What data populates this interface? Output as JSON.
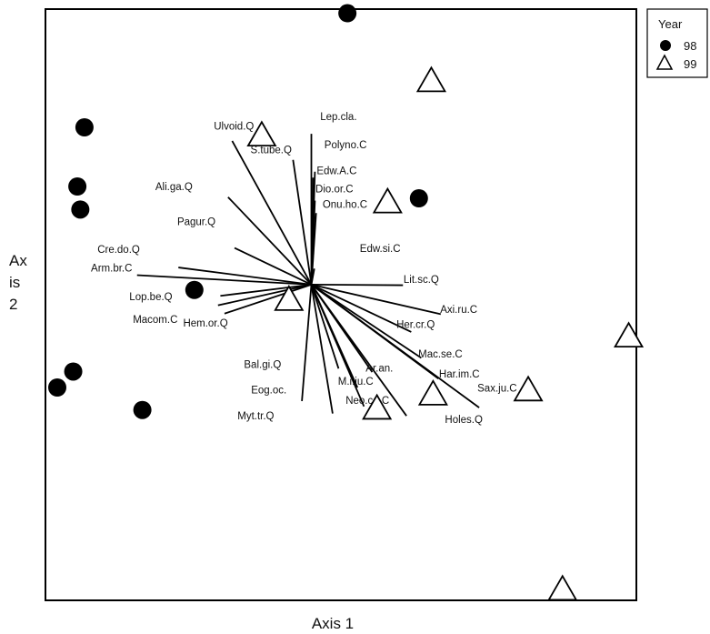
{
  "chart_data": {
    "type": "scatter",
    "xlabel": "Axis 1",
    "ylabel_lines": [
      "Ax",
      "is",
      "2"
    ],
    "grid": false,
    "legend": {
      "title": "Year",
      "placement": "top-right",
      "entries": [
        {
          "label": "98",
          "marker": "circle",
          "color": "#000000"
        },
        {
          "label": "99",
          "marker": "triangle",
          "color": "#ffffff"
        }
      ]
    },
    "series": [
      {
        "name": "98",
        "marker": "circle",
        "points": [
          {
            "x": 0.511,
            "y": 0.993
          },
          {
            "x": 0.066,
            "y": 0.8
          },
          {
            "x": 0.054,
            "y": 0.7
          },
          {
            "x": 0.059,
            "y": 0.661
          },
          {
            "x": 0.632,
            "y": 0.68
          },
          {
            "x": 0.252,
            "y": 0.525
          },
          {
            "x": 0.047,
            "y": 0.387
          },
          {
            "x": 0.02,
            "y": 0.36
          },
          {
            "x": 0.164,
            "y": 0.322
          }
        ]
      },
      {
        "name": "99",
        "marker": "triangle",
        "points": [
          {
            "x": 0.653,
            "y": 0.881
          },
          {
            "x": 0.366,
            "y": 0.789
          },
          {
            "x": 0.579,
            "y": 0.676
          },
          {
            "x": 0.412,
            "y": 0.511
          },
          {
            "x": 0.987,
            "y": 0.449
          },
          {
            "x": 0.817,
            "y": 0.358
          },
          {
            "x": 0.656,
            "y": 0.351
          },
          {
            "x": 0.561,
            "y": 0.327
          },
          {
            "x": 0.875,
            "y": 0.021
          }
        ]
      }
    ],
    "vectors": [
      {
        "label": "Lep.cla.",
        "end": {
          "x": 0.45,
          "y": 0.789
        },
        "label_pos": {
          "x": 0.465,
          "y": 0.812
        }
      },
      {
        "label": "Polyno.C",
        "end": {
          "x": 0.456,
          "y": 0.725
        },
        "label_pos": {
          "x": 0.472,
          "y": 0.765
        }
      },
      {
        "label": "Edw.A.C",
        "end": {
          "x": 0.453,
          "y": 0.715
        },
        "label_pos": {
          "x": 0.459,
          "y": 0.721
        }
      },
      {
        "label": "Dio.or.C",
        "end": {
          "x": 0.456,
          "y": 0.676
        },
        "label_pos": {
          "x": 0.457,
          "y": 0.69
        }
      },
      {
        "label": "Onu.ho.C",
        "end": {
          "x": 0.458,
          "y": 0.655
        },
        "label_pos": {
          "x": 0.469,
          "y": 0.664
        }
      },
      {
        "label": "Ulvoid.Q",
        "end": {
          "x": 0.316,
          "y": 0.777
        },
        "label_pos": {
          "x": 0.285,
          "y": 0.796
        }
      },
      {
        "label": "S.tube.Q",
        "end": {
          "x": 0.419,
          "y": 0.745
        },
        "label_pos": {
          "x": 0.347,
          "y": 0.756
        }
      },
      {
        "label": "Ali.ga.Q",
        "end": {
          "x": 0.309,
          "y": 0.682
        },
        "label_pos": {
          "x": 0.186,
          "y": 0.694
        }
      },
      {
        "label": "Pagur.Q",
        "end": {
          "x": 0.32,
          "y": 0.596
        },
        "label_pos": {
          "x": 0.223,
          "y": 0.635
        }
      },
      {
        "label": "Cre.do.Q",
        "end": {
          "x": 0.225,
          "y": 0.563
        },
        "label_pos": {
          "x": 0.088,
          "y": 0.588
        }
      },
      {
        "label": "Arm.br.C",
        "end": {
          "x": 0.155,
          "y": 0.55
        },
        "label_pos": {
          "x": 0.077,
          "y": 0.556
        }
      },
      {
        "label": "Lop.be.Q",
        "end": {
          "x": 0.296,
          "y": 0.515
        },
        "label_pos": {
          "x": 0.142,
          "y": 0.508
        }
      },
      {
        "label": "Macom.C",
        "end": {
          "x": 0.292,
          "y": 0.499
        },
        "label_pos": {
          "x": 0.148,
          "y": 0.469
        }
      },
      {
        "label": "Hem.or.Q",
        "end": {
          "x": 0.303,
          "y": 0.485
        },
        "label_pos": {
          "x": 0.233,
          "y": 0.463
        }
      },
      {
        "label": "Edw.si.C",
        "end": {
          "x": 0.455,
          "y": 0.561
        },
        "label_pos": {
          "x": 0.532,
          "y": 0.589
        }
      },
      {
        "label": "Lit.sc.Q",
        "end": {
          "x": 0.605,
          "y": 0.533
        },
        "label_pos": {
          "x": 0.606,
          "y": 0.537
        }
      },
      {
        "label": "Axi.ru.C",
        "end": {
          "x": 0.669,
          "y": 0.484
        },
        "label_pos": {
          "x": 0.668,
          "y": 0.486
        }
      },
      {
        "label": "Her.cr.Q",
        "end": {
          "x": 0.619,
          "y": 0.454
        },
        "label_pos": {
          "x": 0.594,
          "y": 0.461
        }
      },
      {
        "label": "Mac.se.C",
        "end": {
          "x": 0.636,
          "y": 0.41
        },
        "label_pos": {
          "x": 0.631,
          "y": 0.411
        }
      },
      {
        "label": "Har.im.C",
        "end": {
          "x": 0.665,
          "y": 0.375
        },
        "label_pos": {
          "x": 0.666,
          "y": 0.377
        }
      },
      {
        "label": "Sax.ju.C",
        "end": {
          "x": 0.734,
          "y": 0.326
        },
        "label_pos": {
          "x": 0.731,
          "y": 0.353
        }
      },
      {
        "label": "Ar.an.",
        "end": {
          "x": 0.553,
          "y": 0.386
        },
        "label_pos": {
          "x": 0.542,
          "y": 0.387
        }
      },
      {
        "label": "M.i.ju.C",
        "end": {
          "x": 0.528,
          "y": 0.36
        },
        "label_pos": {
          "x": 0.495,
          "y": 0.365
        }
      },
      {
        "label": "Neo.ca.C",
        "end": {
          "x": 0.539,
          "y": 0.328
        },
        "label_pos": {
          "x": 0.508,
          "y": 0.332
        }
      },
      {
        "label": "Holes.Q",
        "end": {
          "x": 0.611,
          "y": 0.312
        },
        "label_pos": {
          "x": 0.676,
          "y": 0.3
        }
      },
      {
        "label": "Bal.gi.Q",
        "end": {
          "x": 0.496,
          "y": 0.392
        },
        "label_pos": {
          "x": 0.336,
          "y": 0.393
        }
      },
      {
        "label": "Eog.oc.",
        "end": {
          "x": 0.434,
          "y": 0.337
        },
        "label_pos": {
          "x": 0.348,
          "y": 0.35
        }
      },
      {
        "label": "Myt.tr.Q",
        "end": {
          "x": 0.486,
          "y": 0.316
        },
        "label_pos": {
          "x": 0.325,
          "y": 0.306
        }
      }
    ]
  }
}
